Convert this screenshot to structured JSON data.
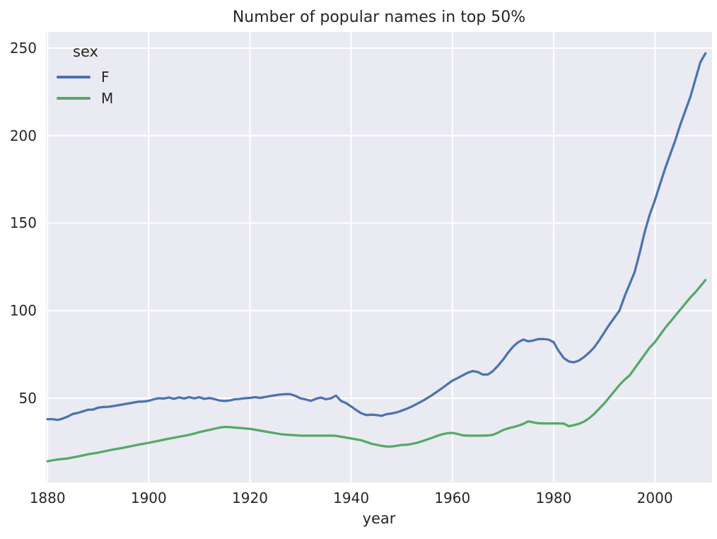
{
  "figure": {
    "title": "Number of popular names in top 50%",
    "xlabel": "year"
  },
  "legend": {
    "title": "sex",
    "series": [
      {
        "label": "F"
      },
      {
        "label": "M"
      }
    ]
  },
  "chart_data": {
    "type": "line",
    "title": "Number of popular names in top 50%",
    "xlabel": "year",
    "ylabel": "",
    "x_start": 1880,
    "x_step": 1,
    "x_end": 2010,
    "xlim": [
      1879.7,
      2011.3
    ],
    "ylim": [
      1.9,
      259.3
    ],
    "x_ticks": [
      1880,
      1900,
      1920,
      1940,
      1960,
      1980,
      2000
    ],
    "y_ticks": [
      50,
      100,
      150,
      200,
      250
    ],
    "grid": true,
    "legend_position": "upper left",
    "legend_title": "sex",
    "colors": {
      "plot_background": "#eaeaf2",
      "grid": "#ffffff",
      "text": "#262626"
    },
    "series": [
      {
        "name": "F",
        "color": "#4c72b0",
        "values": [
          38.0,
          38.0,
          37.6,
          38.4,
          39.5,
          41.0,
          41.6,
          42.5,
          43.4,
          43.5,
          44.6,
          45.0,
          45.1,
          45.5,
          46.0,
          46.5,
          47.0,
          47.5,
          48.0,
          48.1,
          48.5,
          49.4,
          50.0,
          49.8,
          50.4,
          49.6,
          50.5,
          49.8,
          50.6,
          49.9,
          50.6,
          49.6,
          50.1,
          49.5,
          48.7,
          48.4,
          48.7,
          49.4,
          49.6,
          50.0,
          50.2,
          50.6,
          50.2,
          50.7,
          51.2,
          51.7,
          52.1,
          52.3,
          52.3,
          51.3,
          49.9,
          49.3,
          48.5,
          49.6,
          50.4,
          49.4,
          49.9,
          51.5,
          48.4,
          47.2,
          45.3,
          43.2,
          41.4,
          40.4,
          40.6,
          40.4,
          39.9,
          40.9,
          41.3,
          41.9,
          42.9,
          44.0,
          45.3,
          46.8,
          48.3,
          50.0,
          51.8,
          53.8,
          55.8,
          58.0,
          60.0,
          61.5,
          63.0,
          64.5,
          65.5,
          65.0,
          63.5,
          63.5,
          65.5,
          68.5,
          72.0,
          76.0,
          79.5,
          82.0,
          83.5,
          82.5,
          83.0,
          83.8,
          83.8,
          83.5,
          82.0,
          77.0,
          73.0,
          71.0,
          70.5,
          71.5,
          73.5,
          76.0,
          79.0,
          83.0,
          87.5,
          92.0,
          96.0,
          100.0,
          108.0,
          115.0,
          122.0,
          133.0,
          145.0,
          155.0,
          163.0,
          172.0,
          181.0,
          189.0,
          197.0,
          206.0,
          214.0,
          222.0,
          232.0,
          242.0,
          247.0
        ]
      },
      {
        "name": "M",
        "color": "#55a868",
        "values": [
          14.0,
          14.5,
          15.0,
          15.3,
          15.6,
          16.2,
          16.7,
          17.3,
          18.0,
          18.4,
          18.9,
          19.5,
          20.1,
          20.7,
          21.2,
          21.7,
          22.3,
          22.9,
          23.5,
          24.0,
          24.5,
          25.1,
          25.7,
          26.3,
          26.9,
          27.4,
          28.0,
          28.5,
          29.1,
          29.8,
          30.6,
          31.3,
          31.9,
          32.6,
          33.2,
          33.6,
          33.5,
          33.2,
          33.0,
          32.7,
          32.5,
          32.0,
          31.5,
          31.0,
          30.5,
          30.0,
          29.5,
          29.2,
          29.0,
          28.8,
          28.6,
          28.6,
          28.6,
          28.6,
          28.6,
          28.6,
          28.6,
          28.5,
          28.0,
          27.5,
          27.0,
          26.5,
          26.0,
          25.0,
          24.0,
          23.4,
          22.8,
          22.4,
          22.4,
          22.8,
          23.3,
          23.4,
          23.9,
          24.5,
          25.4,
          26.4,
          27.4,
          28.5,
          29.4,
          30.0,
          30.2,
          29.6,
          28.8,
          28.6,
          28.6,
          28.6,
          28.6,
          28.7,
          29.1,
          30.3,
          31.8,
          32.8,
          33.5,
          34.3,
          35.3,
          36.8,
          36.2,
          35.7,
          35.6,
          35.6,
          35.6,
          35.6,
          35.5,
          34.0,
          34.6,
          35.4,
          36.6,
          38.5,
          41.0,
          44.0,
          47.0,
          50.5,
          54.0,
          57.5,
          60.5,
          63.0,
          67.0,
          71.0,
          75.0,
          79.0,
          82.0,
          86.0,
          90.0,
          93.5,
          97.0,
          100.5,
          104.0,
          107.5,
          110.5,
          114.0,
          117.5
        ]
      }
    ]
  }
}
